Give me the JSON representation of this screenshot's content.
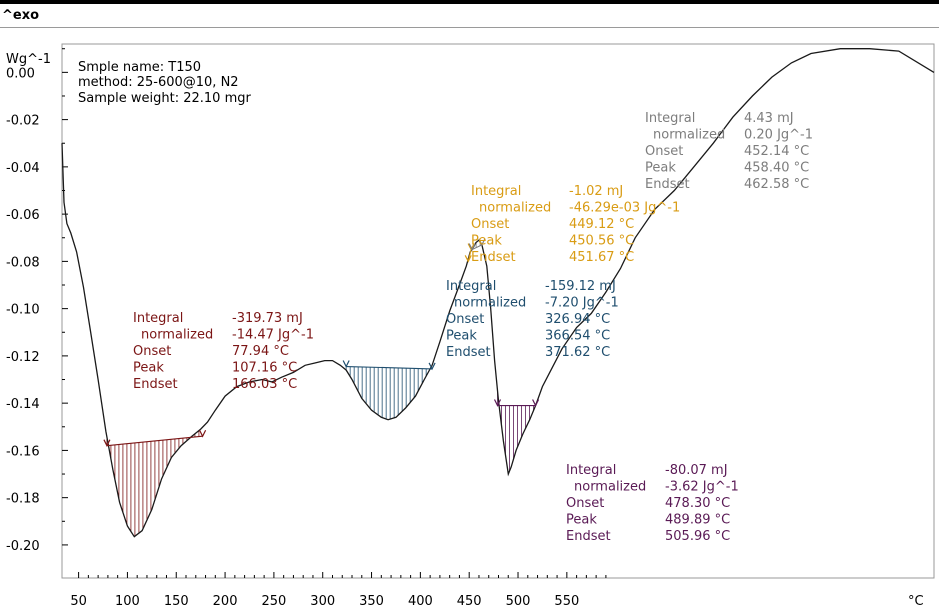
{
  "header": {
    "exo_label": "^exo"
  },
  "sample_info": [
    "Smple name: T150",
    "method: 25-600@10, N2",
    "Sample weight: 22.10 mgr"
  ],
  "chart_data": {
    "type": "line",
    "title": "",
    "xlabel": "°C",
    "ylabel": "Wg^-1",
    "xlim": [
      33,
      926
    ],
    "ylim": [
      -0.214,
      0.012
    ],
    "x_ticks": [
      50,
      100,
      150,
      200,
      250,
      300,
      350,
      400,
      450,
      500,
      550
    ],
    "x_tick_labels": [
      "50",
      "100",
      "150",
      "200",
      "250",
      "300",
      "350",
      "400",
      "450",
      "500",
      "550"
    ],
    "y_ticks": [
      0.0,
      -0.02,
      -0.04,
      -0.06,
      -0.08,
      -0.1,
      -0.12,
      -0.14,
      -0.16,
      -0.18,
      -0.2
    ],
    "y_tick_labels": [
      "0.00",
      "-0.02",
      "-0.04",
      "-0.06",
      "-0.08",
      "-0.10",
      "-0.12",
      "-0.14",
      "-0.16",
      "-0.18",
      "-0.20"
    ],
    "grid": false,
    "series": [
      {
        "points": [
          [
            33,
            -0.03
          ],
          [
            35,
            -0.055
          ],
          [
            38,
            -0.064
          ],
          [
            42,
            -0.068
          ],
          [
            48,
            -0.076
          ],
          [
            55,
            -0.091
          ],
          [
            62,
            -0.109
          ],
          [
            70,
            -0.13
          ],
          [
            78,
            -0.152
          ],
          [
            85,
            -0.168
          ],
          [
            92,
            -0.182
          ],
          [
            100,
            -0.192
          ],
          [
            107,
            -0.1965
          ],
          [
            115,
            -0.194
          ],
          [
            125,
            -0.185
          ],
          [
            135,
            -0.172
          ],
          [
            145,
            -0.163
          ],
          [
            155,
            -0.158
          ],
          [
            166,
            -0.154
          ],
          [
            175,
            -0.151
          ],
          [
            182,
            -0.148
          ],
          [
            190,
            -0.143
          ],
          [
            200,
            -0.137
          ],
          [
            212,
            -0.133
          ],
          [
            225,
            -0.131
          ],
          [
            238,
            -0.13
          ],
          [
            248,
            -0.131
          ],
          [
            258,
            -0.129
          ],
          [
            270,
            -0.127
          ],
          [
            282,
            -0.124
          ],
          [
            292,
            -0.123
          ],
          [
            302,
            -0.122
          ],
          [
            310,
            -0.122
          ],
          [
            318,
            -0.124
          ],
          [
            324,
            -0.126
          ],
          [
            330,
            -0.13
          ],
          [
            340,
            -0.138
          ],
          [
            350,
            -0.143
          ],
          [
            360,
            -0.146
          ],
          [
            367,
            -0.147
          ],
          [
            375,
            -0.146
          ],
          [
            385,
            -0.142
          ],
          [
            395,
            -0.137
          ],
          [
            404,
            -0.13
          ],
          [
            412,
            -0.124
          ],
          [
            420,
            -0.114
          ],
          [
            430,
            -0.101
          ],
          [
            440,
            -0.09
          ],
          [
            447,
            -0.082
          ],
          [
            451,
            -0.076
          ],
          [
            453,
            -0.075
          ],
          [
            457,
            -0.072
          ],
          [
            460,
            -0.071
          ],
          [
            463,
            -0.073
          ],
          [
            468,
            -0.082
          ],
          [
            472,
            -0.1
          ],
          [
            476,
            -0.122
          ],
          [
            480,
            -0.139
          ],
          [
            485,
            -0.156
          ],
          [
            490,
            -0.17
          ],
          [
            493,
            -0.167
          ],
          [
            498,
            -0.16
          ],
          [
            505,
            -0.153
          ],
          [
            512,
            -0.147
          ],
          [
            518,
            -0.141
          ],
          [
            525,
            -0.133
          ],
          [
            535,
            -0.125
          ],
          [
            545,
            -0.117
          ],
          [
            560,
            -0.108
          ],
          [
            575,
            -0.102
          ],
          [
            590,
            -0.093
          ],
          [
            605,
            -0.083
          ],
          [
            620,
            -0.07
          ],
          [
            640,
            -0.058
          ],
          [
            660,
            -0.05
          ],
          [
            680,
            -0.04
          ],
          [
            700,
            -0.03
          ],
          [
            720,
            -0.019
          ],
          [
            740,
            -0.01
          ],
          [
            760,
            -0.002
          ],
          [
            780,
            0.004
          ],
          [
            800,
            0.008
          ],
          [
            830,
            0.01
          ],
          [
            860,
            0.01
          ],
          [
            890,
            0.009
          ],
          [
            926,
            0.0
          ]
        ],
        "color": "#1a1a1a"
      }
    ],
    "peaks": [
      {
        "name": "peak-1",
        "color": "#7b1515",
        "start": [
          79,
          -0.158
        ],
        "end": [
          177,
          -0.154
        ],
        "labels": [
          "Integral",
          "normalized",
          "Onset",
          "Peak",
          "Endset"
        ],
        "values": [
          "-319.73 mJ",
          "-14.47 Jg^-1",
          "77.94 °C",
          "107.16 °C",
          "166.03 °C"
        ]
      },
      {
        "name": "peak-2",
        "color": "#1f4e6e",
        "start": [
          324,
          -0.1245
        ],
        "end": [
          412,
          -0.1255
        ],
        "labels": [
          "Integral",
          "normalized",
          "Onset",
          "Peak",
          "Endset"
        ],
        "values": [
          "-159.12 mJ",
          "-7.20 Jg^-1",
          "326.94 °C",
          "366.54 °C",
          "371.62 °C"
        ]
      },
      {
        "name": "peak-3",
        "color": "#d99c14",
        "start": [
          449,
          -0.08
        ],
        "end": [
          452,
          -0.075
        ],
        "labels": [
          "Integral",
          "normalized",
          "Onset",
          "Peak",
          "Endset"
        ],
        "values": [
          "-1.02 mJ",
          "-46.29e-03 Jg^-1",
          "449.12 °C",
          "450.56 °C",
          "451.67 °C"
        ]
      },
      {
        "name": "peak-4",
        "color": "#7d7d7d",
        "start": [
          453,
          -0.075
        ],
        "end": [
          463,
          -0.073
        ],
        "labels": [
          "Integral",
          "normalized",
          "Onset",
          "Peak",
          "Endset"
        ],
        "values": [
          "4.43 mJ",
          "0.20 Jg^-1",
          "452.14 °C",
          "458.40 °C",
          "462.58 °C"
        ]
      },
      {
        "name": "peak-5",
        "color": "#5a1a55",
        "start": [
          479,
          -0.141
        ],
        "end": [
          518,
          -0.141
        ],
        "labels": [
          "Integral",
          "normalized",
          "Onset",
          "Peak",
          "Endset"
        ],
        "values": [
          "-80.07 mJ",
          "-3.62 Jg^-1",
          "478.30 °C",
          "489.89 °C",
          "505.96 °C"
        ]
      }
    ]
  }
}
